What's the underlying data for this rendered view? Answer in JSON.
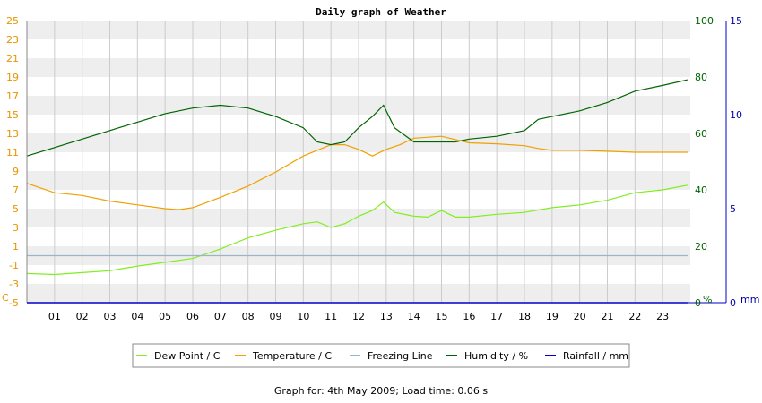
{
  "chart_data": {
    "type": "line",
    "title": "Daily graph of Weather",
    "left_axis": {
      "unit_label": "C",
      "ylim": [
        -5,
        25
      ],
      "ticks": [
        "-5",
        "-3",
        "-1",
        "1",
        "3",
        "5",
        "7",
        "9",
        "11",
        "13",
        "15",
        "17",
        "19",
        "21",
        "23",
        "25"
      ],
      "color": "#e69500"
    },
    "humidity_axis": {
      "unit_label": "%",
      "ylim": [
        0,
        100
      ],
      "ticks": [
        "0",
        "20",
        "40",
        "60",
        "80",
        "100"
      ],
      "color": "#006400"
    },
    "rain_axis": {
      "unit_label": "mm",
      "ylim": [
        0,
        15
      ],
      "ticks": [
        "0",
        "5",
        "10",
        "15"
      ],
      "color": "#0000aa"
    },
    "x_range": [
      0,
      24
    ],
    "x_ticks": [
      "01",
      "02",
      "03",
      "04",
      "05",
      "06",
      "07",
      "08",
      "09",
      "10",
      "11",
      "12",
      "13",
      "14",
      "15",
      "16",
      "17",
      "18",
      "19",
      "20",
      "21",
      "22",
      "23"
    ],
    "grid": true,
    "series": [
      {
        "name": "Dew Point / C",
        "color": "#80ee20",
        "axis": "left",
        "x": [
          0,
          1,
          2,
          3,
          4,
          5,
          6,
          7,
          8,
          9,
          10,
          10.5,
          11,
          11.5,
          12,
          12.5,
          12.9,
          13.3,
          14,
          14.5,
          15,
          15.5,
          16,
          17,
          18,
          19,
          20,
          21,
          22,
          23,
          23.9
        ],
        "y": [
          -1.9,
          -2.0,
          -1.8,
          -1.6,
          -1.1,
          -0.7,
          -0.3,
          0.7,
          1.9,
          2.7,
          3.4,
          3.6,
          3.0,
          3.4,
          4.2,
          4.8,
          5.7,
          4.6,
          4.2,
          4.1,
          4.8,
          4.1,
          4.1,
          4.4,
          4.6,
          5.1,
          5.4,
          5.9,
          6.7,
          7.0,
          7.5
        ]
      },
      {
        "name": "Temperature / C",
        "color": "#f0a000",
        "axis": "left",
        "x": [
          0,
          1,
          2,
          3,
          4,
          5,
          5.5,
          6,
          7,
          8,
          9,
          10,
          11,
          11.5,
          12,
          12.5,
          13,
          13.5,
          14,
          15,
          16,
          17,
          18,
          18.5,
          19,
          20,
          21,
          22,
          23,
          23.9
        ],
        "y": [
          7.7,
          6.7,
          6.4,
          5.8,
          5.4,
          5.0,
          4.9,
          5.1,
          6.2,
          7.4,
          8.9,
          10.6,
          11.8,
          11.8,
          11.3,
          10.6,
          11.3,
          11.8,
          12.5,
          12.7,
          12.0,
          11.9,
          11.7,
          11.4,
          11.2,
          11.2,
          11.1,
          11.0,
          11.0,
          11.0
        ]
      },
      {
        "name": "Freezing Line",
        "color": "#9bb5c8",
        "axis": "left",
        "x": [
          0,
          23.9
        ],
        "y": [
          0,
          0
        ]
      },
      {
        "name": "Humidity / %",
        "color": "#006400",
        "axis": "humidity",
        "x": [
          0,
          1,
          2,
          3,
          4,
          5,
          6,
          7,
          8,
          9,
          10,
          10.5,
          11,
          11.5,
          12,
          12.5,
          12.9,
          13.3,
          14,
          15,
          15.5,
          16,
          17,
          18,
          18.5,
          19,
          20,
          21,
          22,
          23,
          23.9
        ],
        "y": [
          52,
          55,
          58,
          61,
          64,
          67,
          69,
          70,
          69,
          66,
          62,
          57,
          56,
          57,
          62,
          66,
          70,
          62,
          57,
          57,
          57,
          58,
          59,
          61,
          65,
          66,
          68,
          71,
          75,
          77,
          79
        ]
      },
      {
        "name": "Rainfall / mm",
        "color": "#0000cc",
        "axis": "rain",
        "x": [
          0,
          23.9
        ],
        "y": [
          0,
          0
        ]
      }
    ],
    "legend": {
      "position": "bottom",
      "items": [
        {
          "label": "Dew Point / C",
          "color": "#80ee20"
        },
        {
          "label": "Temperature / C",
          "color": "#f0a000"
        },
        {
          "label": "Freezing Line",
          "color": "#9bb5c8"
        },
        {
          "label": "Humidity / %",
          "color": "#006400"
        },
        {
          "label": "Rainfall / mm",
          "color": "#0000cc"
        }
      ]
    }
  },
  "footer": "Graph for: 4th May 2009; Load time: 0.06 s"
}
